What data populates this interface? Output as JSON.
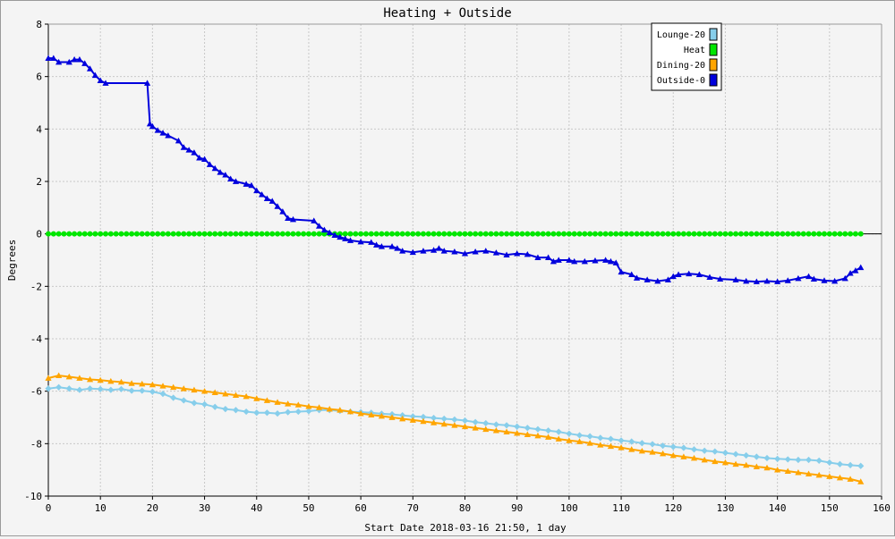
{
  "chart_data": {
    "type": "line",
    "title": "Heating + Outside",
    "xlabel": "Start Date 2018-03-16 21:50, 1 day",
    "ylabel": "Degrees",
    "xlim": [
      0,
      160
    ],
    "ylim": [
      -10,
      8
    ],
    "x_ticks": [
      0,
      10,
      20,
      30,
      40,
      50,
      60,
      70,
      80,
      90,
      100,
      110,
      120,
      130,
      140,
      150,
      160
    ],
    "y_ticks": [
      -10,
      -8,
      -6,
      -4,
      -2,
      0,
      2,
      4,
      6,
      8
    ],
    "grid": true,
    "legend_position": "top-right",
    "series": [
      {
        "name": "Lounge-20",
        "color": "#87ceeb",
        "marker": "diamond",
        "points": [
          [
            0,
            -5.9
          ],
          [
            2,
            -5.85
          ],
          [
            4,
            -5.9
          ],
          [
            6,
            -5.95
          ],
          [
            8,
            -5.9
          ],
          [
            10,
            -5.92
          ],
          [
            12,
            -5.95
          ],
          [
            14,
            -5.92
          ],
          [
            16,
            -5.98
          ],
          [
            18,
            -5.98
          ],
          [
            20,
            -6.02
          ],
          [
            22,
            -6.1
          ],
          [
            24,
            -6.25
          ],
          [
            26,
            -6.35
          ],
          [
            28,
            -6.45
          ],
          [
            30,
            -6.5
          ],
          [
            32,
            -6.6
          ],
          [
            34,
            -6.68
          ],
          [
            36,
            -6.72
          ],
          [
            38,
            -6.78
          ],
          [
            40,
            -6.82
          ],
          [
            42,
            -6.82
          ],
          [
            44,
            -6.85
          ],
          [
            46,
            -6.8
          ],
          [
            48,
            -6.78
          ],
          [
            50,
            -6.76
          ],
          [
            52,
            -6.72
          ],
          [
            54,
            -6.72
          ],
          [
            56,
            -6.75
          ],
          [
            58,
            -6.78
          ],
          [
            60,
            -6.8
          ],
          [
            62,
            -6.82
          ],
          [
            64,
            -6.86
          ],
          [
            66,
            -6.88
          ],
          [
            68,
            -6.92
          ],
          [
            70,
            -6.96
          ],
          [
            72,
            -6.98
          ],
          [
            74,
            -7.02
          ],
          [
            76,
            -7.05
          ],
          [
            78,
            -7.08
          ],
          [
            80,
            -7.12
          ],
          [
            82,
            -7.18
          ],
          [
            84,
            -7.22
          ],
          [
            86,
            -7.27
          ],
          [
            88,
            -7.3
          ],
          [
            90,
            -7.35
          ],
          [
            92,
            -7.4
          ],
          [
            94,
            -7.45
          ],
          [
            96,
            -7.5
          ],
          [
            98,
            -7.55
          ],
          [
            100,
            -7.62
          ],
          [
            102,
            -7.68
          ],
          [
            104,
            -7.72
          ],
          [
            106,
            -7.78
          ],
          [
            108,
            -7.82
          ],
          [
            110,
            -7.88
          ],
          [
            112,
            -7.92
          ],
          [
            114,
            -7.98
          ],
          [
            116,
            -8.02
          ],
          [
            118,
            -8.08
          ],
          [
            120,
            -8.12
          ],
          [
            122,
            -8.16
          ],
          [
            124,
            -8.22
          ],
          [
            126,
            -8.27
          ],
          [
            128,
            -8.3
          ],
          [
            130,
            -8.35
          ],
          [
            132,
            -8.4
          ],
          [
            134,
            -8.45
          ],
          [
            136,
            -8.5
          ],
          [
            138,
            -8.55
          ],
          [
            140,
            -8.58
          ],
          [
            142,
            -8.6
          ],
          [
            144,
            -8.62
          ],
          [
            146,
            -8.62
          ],
          [
            148,
            -8.65
          ],
          [
            150,
            -8.72
          ],
          [
            152,
            -8.78
          ],
          [
            154,
            -8.82
          ],
          [
            156,
            -8.85
          ]
        ]
      },
      {
        "name": "Heat",
        "color": "#00e600",
        "marker": "circle",
        "points": [
          [
            0,
            0
          ],
          [
            156,
            0
          ]
        ]
      },
      {
        "name": "Dining-20",
        "color": "#ffa500",
        "marker": "triangle",
        "points": [
          [
            0,
            -5.5
          ],
          [
            2,
            -5.4
          ],
          [
            4,
            -5.45
          ],
          [
            6,
            -5.5
          ],
          [
            8,
            -5.55
          ],
          [
            10,
            -5.58
          ],
          [
            12,
            -5.62
          ],
          [
            14,
            -5.65
          ],
          [
            16,
            -5.7
          ],
          [
            18,
            -5.72
          ],
          [
            20,
            -5.75
          ],
          [
            22,
            -5.8
          ],
          [
            24,
            -5.85
          ],
          [
            26,
            -5.9
          ],
          [
            28,
            -5.95
          ],
          [
            30,
            -6.0
          ],
          [
            32,
            -6.05
          ],
          [
            34,
            -6.1
          ],
          [
            36,
            -6.15
          ],
          [
            38,
            -6.2
          ],
          [
            40,
            -6.28
          ],
          [
            42,
            -6.35
          ],
          [
            44,
            -6.42
          ],
          [
            46,
            -6.48
          ],
          [
            48,
            -6.52
          ],
          [
            50,
            -6.58
          ],
          [
            52,
            -6.62
          ],
          [
            54,
            -6.68
          ],
          [
            56,
            -6.72
          ],
          [
            58,
            -6.78
          ],
          [
            60,
            -6.85
          ],
          [
            62,
            -6.9
          ],
          [
            64,
            -6.95
          ],
          [
            66,
            -7.0
          ],
          [
            68,
            -7.05
          ],
          [
            70,
            -7.1
          ],
          [
            72,
            -7.15
          ],
          [
            74,
            -7.2
          ],
          [
            76,
            -7.25
          ],
          [
            78,
            -7.3
          ],
          [
            80,
            -7.35
          ],
          [
            82,
            -7.4
          ],
          [
            84,
            -7.45
          ],
          [
            86,
            -7.5
          ],
          [
            88,
            -7.55
          ],
          [
            90,
            -7.6
          ],
          [
            92,
            -7.65
          ],
          [
            94,
            -7.7
          ],
          [
            96,
            -7.75
          ],
          [
            98,
            -7.82
          ],
          [
            100,
            -7.88
          ],
          [
            102,
            -7.92
          ],
          [
            104,
            -7.98
          ],
          [
            106,
            -8.05
          ],
          [
            108,
            -8.1
          ],
          [
            110,
            -8.15
          ],
          [
            112,
            -8.22
          ],
          [
            114,
            -8.28
          ],
          [
            116,
            -8.32
          ],
          [
            118,
            -8.38
          ],
          [
            120,
            -8.45
          ],
          [
            122,
            -8.5
          ],
          [
            124,
            -8.55
          ],
          [
            126,
            -8.62
          ],
          [
            128,
            -8.68
          ],
          [
            130,
            -8.72
          ],
          [
            132,
            -8.78
          ],
          [
            134,
            -8.82
          ],
          [
            136,
            -8.88
          ],
          [
            138,
            -8.92
          ],
          [
            140,
            -9.0
          ],
          [
            142,
            -9.05
          ],
          [
            144,
            -9.1
          ],
          [
            146,
            -9.15
          ],
          [
            148,
            -9.2
          ],
          [
            150,
            -9.25
          ],
          [
            152,
            -9.3
          ],
          [
            154,
            -9.35
          ],
          [
            156,
            -9.45
          ]
        ]
      },
      {
        "name": "Outside-0",
        "color": "#0000dd",
        "marker": "triangle",
        "points": [
          [
            0,
            6.7
          ],
          [
            1,
            6.7
          ],
          [
            2,
            6.55
          ],
          [
            4,
            6.55
          ],
          [
            5,
            6.65
          ],
          [
            6,
            6.65
          ],
          [
            7,
            6.5
          ],
          [
            8,
            6.3
          ],
          [
            9,
            6.05
          ],
          [
            10,
            5.85
          ],
          [
            11,
            5.75
          ],
          [
            19,
            5.75
          ],
          [
            19.5,
            4.2
          ],
          [
            20,
            4.1
          ],
          [
            21,
            3.95
          ],
          [
            22,
            3.85
          ],
          [
            23,
            3.75
          ],
          [
            25,
            3.55
          ],
          [
            26,
            3.3
          ],
          [
            27,
            3.2
          ],
          [
            28,
            3.1
          ],
          [
            29,
            2.9
          ],
          [
            30,
            2.85
          ],
          [
            31,
            2.65
          ],
          [
            32,
            2.5
          ],
          [
            33,
            2.35
          ],
          [
            34,
            2.25
          ],
          [
            35,
            2.1
          ],
          [
            36,
            2.0
          ],
          [
            38,
            1.9
          ],
          [
            39,
            1.85
          ],
          [
            40,
            1.65
          ],
          [
            41,
            1.5
          ],
          [
            42,
            1.35
          ],
          [
            43,
            1.25
          ],
          [
            44,
            1.05
          ],
          [
            45,
            0.85
          ],
          [
            46,
            0.6
          ],
          [
            47,
            0.55
          ],
          [
            51,
            0.5
          ],
          [
            52,
            0.3
          ],
          [
            53,
            0.15
          ],
          [
            54,
            0.05
          ],
          [
            55,
            -0.05
          ],
          [
            56,
            -0.12
          ],
          [
            57,
            -0.18
          ],
          [
            58,
            -0.25
          ],
          [
            60,
            -0.3
          ],
          [
            62,
            -0.32
          ],
          [
            63,
            -0.42
          ],
          [
            64,
            -0.48
          ],
          [
            66,
            -0.48
          ],
          [
            67,
            -0.55
          ],
          [
            68,
            -0.65
          ],
          [
            70,
            -0.7
          ],
          [
            72,
            -0.65
          ],
          [
            74,
            -0.62
          ],
          [
            75,
            -0.55
          ],
          [
            76,
            -0.65
          ],
          [
            78,
            -0.68
          ],
          [
            80,
            -0.75
          ],
          [
            82,
            -0.68
          ],
          [
            84,
            -0.65
          ],
          [
            86,
            -0.72
          ],
          [
            88,
            -0.8
          ],
          [
            90,
            -0.75
          ],
          [
            92,
            -0.78
          ],
          [
            94,
            -0.9
          ],
          [
            96,
            -0.9
          ],
          [
            97,
            -1.05
          ],
          [
            98,
            -1.0
          ],
          [
            100,
            -1.0
          ],
          [
            101,
            -1.05
          ],
          [
            103,
            -1.05
          ],
          [
            105,
            -1.02
          ],
          [
            107,
            -1.0
          ],
          [
            108,
            -1.05
          ],
          [
            109,
            -1.1
          ],
          [
            110,
            -1.45
          ],
          [
            112,
            -1.55
          ],
          [
            113,
            -1.68
          ],
          [
            115,
            -1.75
          ],
          [
            117,
            -1.8
          ],
          [
            119,
            -1.75
          ],
          [
            120,
            -1.62
          ],
          [
            121,
            -1.55
          ],
          [
            123,
            -1.52
          ],
          [
            125,
            -1.55
          ],
          [
            127,
            -1.65
          ],
          [
            129,
            -1.72
          ],
          [
            132,
            -1.75
          ],
          [
            134,
            -1.8
          ],
          [
            136,
            -1.82
          ],
          [
            138,
            -1.8
          ],
          [
            140,
            -1.82
          ],
          [
            142,
            -1.78
          ],
          [
            144,
            -1.7
          ],
          [
            146,
            -1.62
          ],
          [
            147,
            -1.72
          ],
          [
            149,
            -1.78
          ],
          [
            151,
            -1.8
          ],
          [
            153,
            -1.7
          ],
          [
            154,
            -1.5
          ],
          [
            155,
            -1.4
          ],
          [
            156,
            -1.28
          ]
        ]
      }
    ]
  }
}
